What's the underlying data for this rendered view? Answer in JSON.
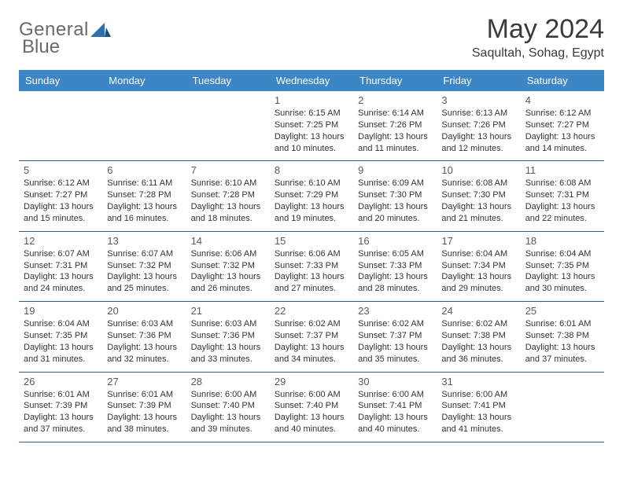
{
  "brand": {
    "name_part1": "General",
    "name_part2": "Blue",
    "text_color": "#6a6a6a",
    "mark_color": "#2f6fb0",
    "mark_color_dark": "#1d4e7a"
  },
  "title": {
    "month": "May 2024",
    "location": "Saqultah, Sohag, Egypt"
  },
  "colors": {
    "header_bg": "#3d86c6",
    "header_fg": "#ffffff",
    "row_border": "#2f5d8a",
    "daynum": "#5a5a5a",
    "body_text": "#333333",
    "page_bg": "#ffffff"
  },
  "day_headers": [
    "Sunday",
    "Monday",
    "Tuesday",
    "Wednesday",
    "Thursday",
    "Friday",
    "Saturday"
  ],
  "weeks": [
    [
      {
        "n": "",
        "sr": "",
        "ss": "",
        "dl1": "",
        "dl2": ""
      },
      {
        "n": "",
        "sr": "",
        "ss": "",
        "dl1": "",
        "dl2": ""
      },
      {
        "n": "",
        "sr": "",
        "ss": "",
        "dl1": "",
        "dl2": ""
      },
      {
        "n": "1",
        "sr": "Sunrise: 6:15 AM",
        "ss": "Sunset: 7:25 PM",
        "dl1": "Daylight: 13 hours",
        "dl2": "and 10 minutes."
      },
      {
        "n": "2",
        "sr": "Sunrise: 6:14 AM",
        "ss": "Sunset: 7:26 PM",
        "dl1": "Daylight: 13 hours",
        "dl2": "and 11 minutes."
      },
      {
        "n": "3",
        "sr": "Sunrise: 6:13 AM",
        "ss": "Sunset: 7:26 PM",
        "dl1": "Daylight: 13 hours",
        "dl2": "and 12 minutes."
      },
      {
        "n": "4",
        "sr": "Sunrise: 6:12 AM",
        "ss": "Sunset: 7:27 PM",
        "dl1": "Daylight: 13 hours",
        "dl2": "and 14 minutes."
      }
    ],
    [
      {
        "n": "5",
        "sr": "Sunrise: 6:12 AM",
        "ss": "Sunset: 7:27 PM",
        "dl1": "Daylight: 13 hours",
        "dl2": "and 15 minutes."
      },
      {
        "n": "6",
        "sr": "Sunrise: 6:11 AM",
        "ss": "Sunset: 7:28 PM",
        "dl1": "Daylight: 13 hours",
        "dl2": "and 16 minutes."
      },
      {
        "n": "7",
        "sr": "Sunrise: 6:10 AM",
        "ss": "Sunset: 7:28 PM",
        "dl1": "Daylight: 13 hours",
        "dl2": "and 18 minutes."
      },
      {
        "n": "8",
        "sr": "Sunrise: 6:10 AM",
        "ss": "Sunset: 7:29 PM",
        "dl1": "Daylight: 13 hours",
        "dl2": "and 19 minutes."
      },
      {
        "n": "9",
        "sr": "Sunrise: 6:09 AM",
        "ss": "Sunset: 7:30 PM",
        "dl1": "Daylight: 13 hours",
        "dl2": "and 20 minutes."
      },
      {
        "n": "10",
        "sr": "Sunrise: 6:08 AM",
        "ss": "Sunset: 7:30 PM",
        "dl1": "Daylight: 13 hours",
        "dl2": "and 21 minutes."
      },
      {
        "n": "11",
        "sr": "Sunrise: 6:08 AM",
        "ss": "Sunset: 7:31 PM",
        "dl1": "Daylight: 13 hours",
        "dl2": "and 22 minutes."
      }
    ],
    [
      {
        "n": "12",
        "sr": "Sunrise: 6:07 AM",
        "ss": "Sunset: 7:31 PM",
        "dl1": "Daylight: 13 hours",
        "dl2": "and 24 minutes."
      },
      {
        "n": "13",
        "sr": "Sunrise: 6:07 AM",
        "ss": "Sunset: 7:32 PM",
        "dl1": "Daylight: 13 hours",
        "dl2": "and 25 minutes."
      },
      {
        "n": "14",
        "sr": "Sunrise: 6:06 AM",
        "ss": "Sunset: 7:32 PM",
        "dl1": "Daylight: 13 hours",
        "dl2": "and 26 minutes."
      },
      {
        "n": "15",
        "sr": "Sunrise: 6:06 AM",
        "ss": "Sunset: 7:33 PM",
        "dl1": "Daylight: 13 hours",
        "dl2": "and 27 minutes."
      },
      {
        "n": "16",
        "sr": "Sunrise: 6:05 AM",
        "ss": "Sunset: 7:33 PM",
        "dl1": "Daylight: 13 hours",
        "dl2": "and 28 minutes."
      },
      {
        "n": "17",
        "sr": "Sunrise: 6:04 AM",
        "ss": "Sunset: 7:34 PM",
        "dl1": "Daylight: 13 hours",
        "dl2": "and 29 minutes."
      },
      {
        "n": "18",
        "sr": "Sunrise: 6:04 AM",
        "ss": "Sunset: 7:35 PM",
        "dl1": "Daylight: 13 hours",
        "dl2": "and 30 minutes."
      }
    ],
    [
      {
        "n": "19",
        "sr": "Sunrise: 6:04 AM",
        "ss": "Sunset: 7:35 PM",
        "dl1": "Daylight: 13 hours",
        "dl2": "and 31 minutes."
      },
      {
        "n": "20",
        "sr": "Sunrise: 6:03 AM",
        "ss": "Sunset: 7:36 PM",
        "dl1": "Daylight: 13 hours",
        "dl2": "and 32 minutes."
      },
      {
        "n": "21",
        "sr": "Sunrise: 6:03 AM",
        "ss": "Sunset: 7:36 PM",
        "dl1": "Daylight: 13 hours",
        "dl2": "and 33 minutes."
      },
      {
        "n": "22",
        "sr": "Sunrise: 6:02 AM",
        "ss": "Sunset: 7:37 PM",
        "dl1": "Daylight: 13 hours",
        "dl2": "and 34 minutes."
      },
      {
        "n": "23",
        "sr": "Sunrise: 6:02 AM",
        "ss": "Sunset: 7:37 PM",
        "dl1": "Daylight: 13 hours",
        "dl2": "and 35 minutes."
      },
      {
        "n": "24",
        "sr": "Sunrise: 6:02 AM",
        "ss": "Sunset: 7:38 PM",
        "dl1": "Daylight: 13 hours",
        "dl2": "and 36 minutes."
      },
      {
        "n": "25",
        "sr": "Sunrise: 6:01 AM",
        "ss": "Sunset: 7:38 PM",
        "dl1": "Daylight: 13 hours",
        "dl2": "and 37 minutes."
      }
    ],
    [
      {
        "n": "26",
        "sr": "Sunrise: 6:01 AM",
        "ss": "Sunset: 7:39 PM",
        "dl1": "Daylight: 13 hours",
        "dl2": "and 37 minutes."
      },
      {
        "n": "27",
        "sr": "Sunrise: 6:01 AM",
        "ss": "Sunset: 7:39 PM",
        "dl1": "Daylight: 13 hours",
        "dl2": "and 38 minutes."
      },
      {
        "n": "28",
        "sr": "Sunrise: 6:00 AM",
        "ss": "Sunset: 7:40 PM",
        "dl1": "Daylight: 13 hours",
        "dl2": "and 39 minutes."
      },
      {
        "n": "29",
        "sr": "Sunrise: 6:00 AM",
        "ss": "Sunset: 7:40 PM",
        "dl1": "Daylight: 13 hours",
        "dl2": "and 40 minutes."
      },
      {
        "n": "30",
        "sr": "Sunrise: 6:00 AM",
        "ss": "Sunset: 7:41 PM",
        "dl1": "Daylight: 13 hours",
        "dl2": "and 40 minutes."
      },
      {
        "n": "31",
        "sr": "Sunrise: 6:00 AM",
        "ss": "Sunset: 7:41 PM",
        "dl1": "Daylight: 13 hours",
        "dl2": "and 41 minutes."
      },
      {
        "n": "",
        "sr": "",
        "ss": "",
        "dl1": "",
        "dl2": ""
      }
    ]
  ]
}
